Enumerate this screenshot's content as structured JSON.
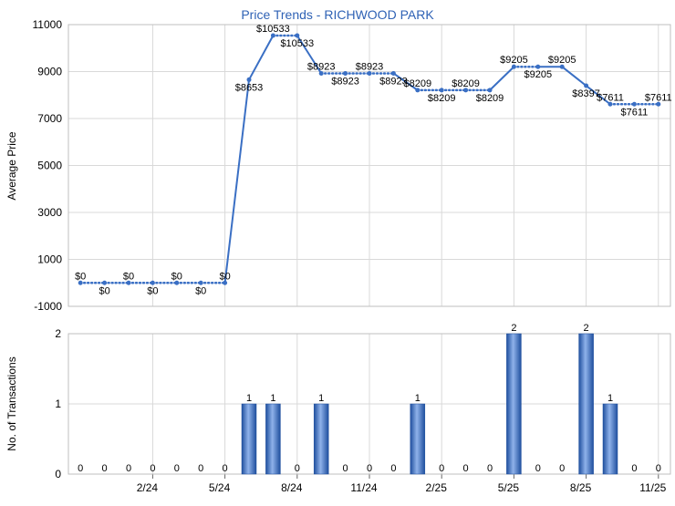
{
  "chart_data": [
    {
      "type": "line",
      "title": "Price Trends - RICHWOOD PARK",
      "ylabel": "Average Price",
      "ylim": [
        -1000,
        11000
      ],
      "yticks": [
        -1000,
        1000,
        3000,
        5000,
        7000,
        9000,
        11000
      ],
      "grid": true,
      "x": [
        "11/23",
        "12/23",
        "1/24",
        "2/24",
        "3/24",
        "4/24",
        "5/24",
        "6/24",
        "7/24",
        "8/24",
        "9/24",
        "10/24",
        "11/24",
        "12/24",
        "1/25",
        "2/25",
        "3/25",
        "4/25",
        "5/25",
        "6/25",
        "7/25",
        "8/25",
        "9/25",
        "10/25",
        "11/25"
      ],
      "values": [
        0,
        0,
        0,
        0,
        0,
        0,
        0,
        8653,
        10533,
        10533,
        8923,
        8923,
        8923,
        8923,
        8209,
        8209,
        8209,
        8209,
        9205,
        9205,
        9205,
        8397,
        7611,
        7611,
        7611
      ],
      "labels": [
        "$0",
        "$0",
        "$0",
        "$0",
        "$0",
        "$0",
        "$0",
        "$8653",
        "$10533",
        "$10533",
        "$8923",
        "$8923",
        "$8923",
        "$8923",
        "$8209",
        "$8209",
        "$8209",
        "$8209",
        "$9205",
        "$9205",
        "$9205",
        "$8397",
        "$7611",
        "$7611",
        "$7611"
      ],
      "carried_forward": [
        false,
        true,
        true,
        true,
        true,
        true,
        true,
        false,
        false,
        true,
        false,
        true,
        true,
        true,
        false,
        true,
        true,
        true,
        false,
        true,
        false,
        false,
        false,
        true,
        true
      ],
      "color": "#3a6fc4"
    },
    {
      "type": "bar",
      "ylabel": "No. of Transactions",
      "ylim": [
        0,
        2
      ],
      "yticks": [
        0,
        1,
        2
      ],
      "grid": true,
      "x_tick_labels": [
        "2/24",
        "5/24",
        "8/24",
        "11/24",
        "2/25",
        "5/25",
        "8/25",
        "11/25"
      ],
      "x_tick_indices": [
        3,
        6,
        9,
        12,
        15,
        18,
        21,
        24
      ],
      "values": [
        0,
        0,
        0,
        0,
        0,
        0,
        0,
        1,
        1,
        0,
        1,
        0,
        0,
        0,
        1,
        0,
        0,
        0,
        2,
        0,
        0,
        2,
        1,
        0,
        0
      ],
      "color": "#3a6fc4"
    }
  ]
}
